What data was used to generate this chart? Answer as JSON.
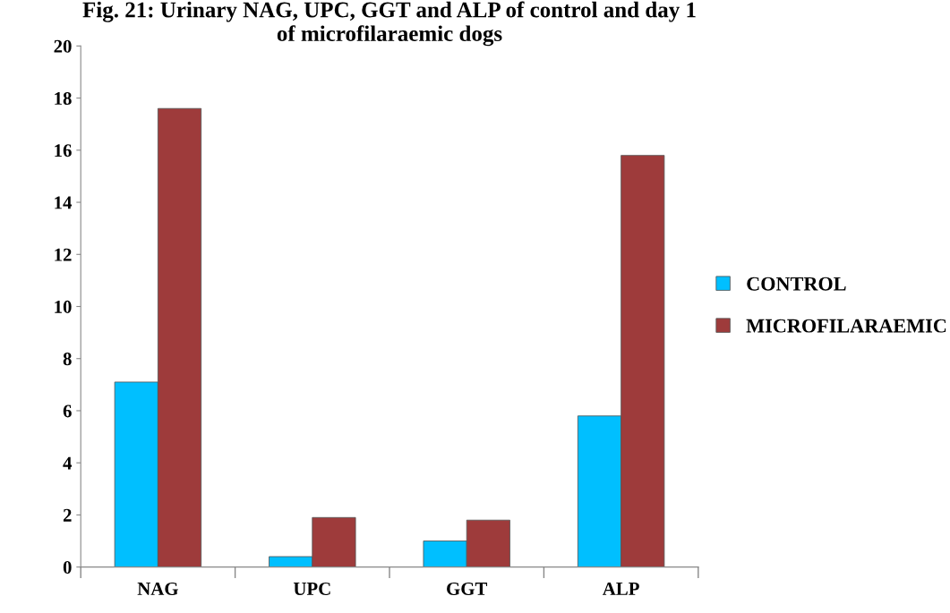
{
  "chart_data": {
    "type": "bar",
    "title": "Fig. 21: Urinary NAG, UPC, GGT and ALP of control and day 1\nof microfilaraemic dogs",
    "categories": [
      "NAG",
      "UPC",
      "GGT",
      "ALP"
    ],
    "series": [
      {
        "name": "CONTROL",
        "color": "#00bfff",
        "values": [
          7.1,
          0.4,
          1.0,
          5.8
        ]
      },
      {
        "name": "MICROFILARAEMIC",
        "color": "#9e3b3b",
        "values": [
          17.6,
          1.9,
          1.8,
          15.8
        ]
      }
    ],
    "ylim": [
      0,
      20
    ],
    "yticks": [
      0,
      2,
      4,
      6,
      8,
      10,
      12,
      14,
      16,
      18,
      20
    ],
    "grid": false,
    "legend": "right"
  }
}
